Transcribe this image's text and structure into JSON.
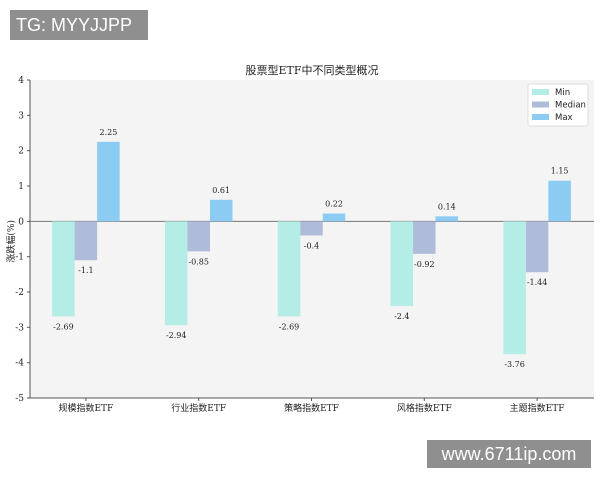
{
  "watermarks": {
    "top_left": "TG: MYYJJPP",
    "bottom_right": "www.6711ip.com"
  },
  "chart_data": {
    "type": "bar",
    "title": "股票型ETF中不同类型概况",
    "xlabel": "",
    "ylabel": "涨跌幅(%)",
    "ylim": [
      -5,
      4
    ],
    "yticks": [
      -5,
      -4,
      -3,
      -2,
      -1,
      0,
      1,
      2,
      3,
      4
    ],
    "grid": false,
    "legend": "top-right",
    "categories": [
      "规模指数ETF",
      "行业指数ETF",
      "策略指数ETF",
      "风格指数ETF",
      "主题指数ETF"
    ],
    "series": [
      {
        "name": "Min",
        "color": "#b3ede6",
        "values": [
          -2.69,
          -2.94,
          -2.69,
          -2.4,
          -3.76
        ]
      },
      {
        "name": "Median",
        "color": "#aebcd9",
        "values": [
          -1.1,
          -0.85,
          -0.4,
          -0.92,
          -1.44
        ]
      },
      {
        "name": "Max",
        "color": "#8ccbf2",
        "values": [
          2.25,
          0.61,
          0.22,
          0.14,
          1.15
        ]
      }
    ]
  }
}
